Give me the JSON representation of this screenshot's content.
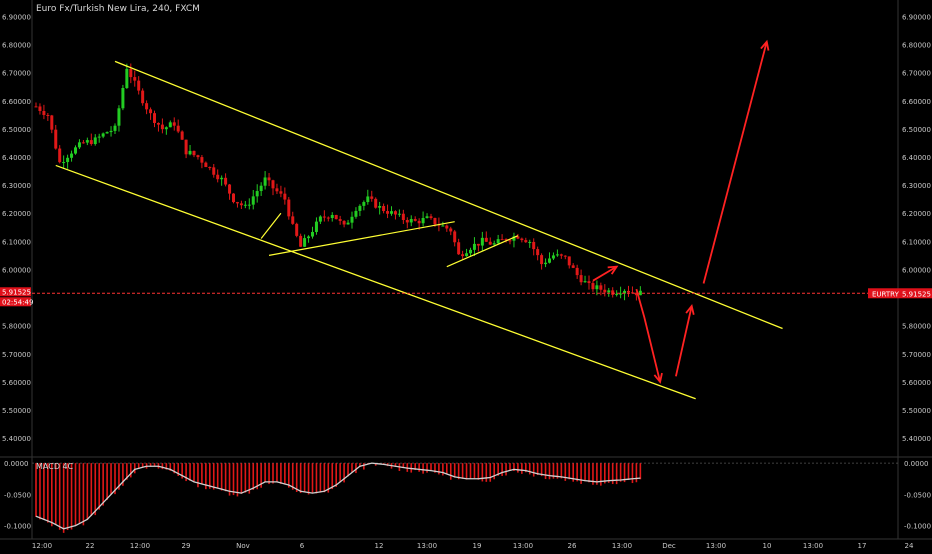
{
  "header": {
    "title": "Euro Fx/Turkish New Lira, 240, FXCM"
  },
  "indicator": {
    "macd_label": "MACD 4C"
  },
  "price_tag": {
    "symbol": "EURTRY",
    "price": "5.91525",
    "countdown": "02:54:49"
  },
  "colors": {
    "background": "#000000",
    "up_candle": "#22cc22",
    "down_candle": "#e01818",
    "channel": "#ffff33",
    "projection": "#ff2222",
    "price_line": "#ff3333",
    "macd_line": "#d0d0d0",
    "axis_text": "#c8c8c8"
  },
  "chart_data": [
    {
      "type": "candlestick",
      "title": "Euro Fx/Turkish New Lira, 240, FXCM",
      "x_tick_labels": [
        "12:00",
        "22",
        "12:00",
        "29",
        "Nov",
        "6",
        "12",
        "13:00",
        "19",
        "13:00",
        "26",
        "13:00",
        "Dec",
        "13:00",
        "10",
        "13:00",
        "17",
        "24"
      ],
      "y_tick_labels": [
        "6.90000",
        "6.80000",
        "6.70000",
        "6.60000",
        "6.50000",
        "6.40000",
        "6.30000",
        "6.20000",
        "6.10000",
        "6.00000",
        "5.80000",
        "5.70000",
        "5.60000",
        "5.50000",
        "5.40000"
      ],
      "ylim": [
        5.34,
        6.93
      ],
      "current_price": 5.91525,
      "close_path": [
        [
          0,
          6.58
        ],
        [
          3,
          6.55
        ],
        [
          6,
          6.38
        ],
        [
          9,
          6.42
        ],
        [
          12,
          6.45
        ],
        [
          15,
          6.46
        ],
        [
          18,
          6.49
        ],
        [
          20,
          6.5
        ],
        [
          23,
          6.72
        ],
        [
          26,
          6.63
        ],
        [
          29,
          6.55
        ],
        [
          32,
          6.5
        ],
        [
          35,
          6.52
        ],
        [
          38,
          6.42
        ],
        [
          41,
          6.4
        ],
        [
          44,
          6.36
        ],
        [
          47,
          6.32
        ],
        [
          50,
          6.25
        ],
        [
          53,
          6.22
        ],
        [
          56,
          6.28
        ],
        [
          58,
          6.32
        ],
        [
          60,
          6.29
        ],
        [
          63,
          6.25
        ],
        [
          65,
          6.15
        ],
        [
          67,
          6.08
        ],
        [
          69,
          6.12
        ],
        [
          72,
          6.18
        ],
        [
          75,
          6.2
        ],
        [
          78,
          6.15
        ],
        [
          81,
          6.22
        ],
        [
          84,
          6.25
        ],
        [
          87,
          6.22
        ],
        [
          90,
          6.2
        ],
        [
          93,
          6.18
        ],
        [
          96,
          6.17
        ],
        [
          99,
          6.18
        ],
        [
          102,
          6.16
        ],
        [
          105,
          6.14
        ],
        [
          107,
          6.05
        ],
        [
          110,
          6.08
        ],
        [
          113,
          6.1
        ],
        [
          116,
          6.09
        ],
        [
          119,
          6.11
        ],
        [
          122,
          6.12
        ],
        [
          125,
          6.1
        ],
        [
          128,
          6.02
        ],
        [
          131,
          6.05
        ],
        [
          134,
          6.04
        ],
        [
          137,
          5.98
        ],
        [
          140,
          5.94
        ],
        [
          143,
          5.93
        ],
        [
          146,
          5.92
        ],
        [
          149,
          5.93
        ],
        [
          151,
          5.92
        ],
        [
          153,
          5.915
        ]
      ],
      "channel_upper": [
        [
          20,
          6.74
        ],
        [
          189,
          5.79
        ]
      ],
      "channel_lower": [
        [
          5,
          6.37
        ],
        [
          167,
          5.54
        ]
      ],
      "pattern_lines": [
        [
          [
            59,
            6.05
          ],
          [
            106,
            6.17
          ]
        ],
        [
          [
            104,
            6.01
          ],
          [
            122,
            6.12
          ]
        ],
        [
          [
            57,
            6.11
          ],
          [
            62,
            6.2
          ]
        ]
      ],
      "projection_path": [
        [
          [
            152,
            5.93
          ],
          [
            154,
            5.83
          ],
          [
            158,
            5.6
          ]
        ],
        [
          [
            162,
            5.62
          ],
          [
            166,
            5.87
          ]
        ],
        [
          [
            169,
            5.95
          ],
          [
            185,
            6.81
          ]
        ],
        [
          [
            141,
            5.96
          ],
          [
            147,
            6.01
          ]
        ]
      ]
    },
    {
      "type": "bar",
      "title": "MACD 4C",
      "y_tick_labels": [
        "0.0000",
        "-0.0500",
        "-0.1000"
      ],
      "ylim": [
        -0.115,
        0.005
      ],
      "signal_path": [
        [
          0,
          -0.085
        ],
        [
          4,
          -0.095
        ],
        [
          7,
          -0.105
        ],
        [
          10,
          -0.1
        ],
        [
          13,
          -0.09
        ],
        [
          16,
          -0.07
        ],
        [
          19,
          -0.05
        ],
        [
          22,
          -0.03
        ],
        [
          25,
          -0.01
        ],
        [
          28,
          -0.005
        ],
        [
          31,
          -0.005
        ],
        [
          34,
          -0.01
        ],
        [
          37,
          -0.02
        ],
        [
          40,
          -0.03
        ],
        [
          43,
          -0.035
        ],
        [
          46,
          -0.04
        ],
        [
          49,
          -0.045
        ],
        [
          52,
          -0.048
        ],
        [
          55,
          -0.04
        ],
        [
          58,
          -0.03
        ],
        [
          61,
          -0.03
        ],
        [
          64,
          -0.035
        ],
        [
          67,
          -0.045
        ],
        [
          70,
          -0.048
        ],
        [
          73,
          -0.045
        ],
        [
          76,
          -0.035
        ],
        [
          79,
          -0.02
        ],
        [
          82,
          -0.005
        ],
        [
          85,
          0.0
        ],
        [
          88,
          -0.002
        ],
        [
          91,
          -0.005
        ],
        [
          94,
          -0.008
        ],
        [
          97,
          -0.01
        ],
        [
          100,
          -0.012
        ],
        [
          103,
          -0.015
        ],
        [
          106,
          -0.022
        ],
        [
          109,
          -0.025
        ],
        [
          112,
          -0.025
        ],
        [
          115,
          -0.023
        ],
        [
          118,
          -0.015
        ],
        [
          121,
          -0.01
        ],
        [
          124,
          -0.012
        ],
        [
          127,
          -0.017
        ],
        [
          130,
          -0.02
        ],
        [
          133,
          -0.022
        ],
        [
          136,
          -0.025
        ],
        [
          139,
          -0.028
        ],
        [
          142,
          -0.03
        ],
        [
          145,
          -0.028
        ],
        [
          148,
          -0.027
        ],
        [
          151,
          -0.025
        ],
        [
          153,
          -0.024
        ]
      ]
    }
  ]
}
